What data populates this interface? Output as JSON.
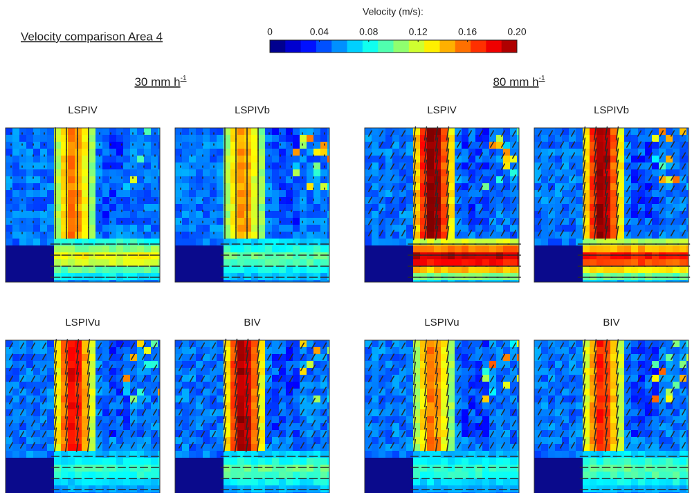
{
  "title": "Velocity comparison Area 4",
  "colorbar": {
    "label": "Velocity (m/s):",
    "lim": [
      0,
      0.2
    ],
    "ticks": [
      0,
      0.04,
      0.08,
      0.12,
      0.16,
      {
        "value": 0.2,
        "label": "0.20"
      }
    ],
    "colors": [
      "#00008f",
      "#0000cf",
      "#0010ff",
      "#0050ff",
      "#0090ff",
      "#00d0ff",
      "#10ffef",
      "#50ffaf",
      "#90ff6f",
      "#cfff30",
      "#ffef00",
      "#ffb000",
      "#ff7000",
      "#ff3000",
      "#ef0000",
      "#af0000"
    ]
  },
  "groups": [
    {
      "label": "30 mm h",
      "superscript": "-1",
      "panels": [
        {
          "label": "LSPIV",
          "color": "#333333"
        },
        {
          "label": "LSPIVb",
          "color": "#2a7ab0"
        },
        {
          "label": "LSPIVu",
          "color": "#2e8b3a"
        },
        {
          "label": "BIV",
          "color": "#e8742a"
        }
      ]
    },
    {
      "label": "80 mm h",
      "superscript": "-1",
      "panels": [
        {
          "label": "LSPIV",
          "color": "#333333"
        },
        {
          "label": "LSPIVb",
          "color": "#2a7ab0"
        },
        {
          "label": "LSPIVu",
          "color": "#2e8b3a"
        },
        {
          "label": "BIV",
          "color": "#e8742a"
        }
      ]
    }
  ]
}
